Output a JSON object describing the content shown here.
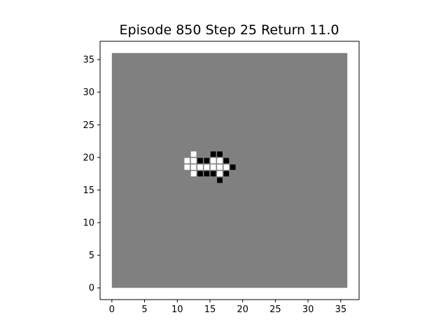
{
  "title": {
    "prefix_episode": "Episode",
    "episode": "850",
    "prefix_step": "Step",
    "step": "25",
    "prefix_return": "Return",
    "return_value": "11.0"
  },
  "board": {
    "grid_size": 36,
    "background_color": "#808080",
    "cells": [
      {
        "x": 12,
        "y": 20,
        "color": "white"
      },
      {
        "x": 15,
        "y": 20,
        "color": "black"
      },
      {
        "x": 16,
        "y": 20,
        "color": "black"
      },
      {
        "x": 11,
        "y": 19,
        "color": "white"
      },
      {
        "x": 12,
        "y": 19,
        "color": "white"
      },
      {
        "x": 13,
        "y": 19,
        "color": "black"
      },
      {
        "x": 14,
        "y": 19,
        "color": "black"
      },
      {
        "x": 15,
        "y": 19,
        "color": "white"
      },
      {
        "x": 16,
        "y": 19,
        "color": "white"
      },
      {
        "x": 17,
        "y": 19,
        "color": "black"
      },
      {
        "x": 11,
        "y": 18,
        "color": "white"
      },
      {
        "x": 12,
        "y": 18,
        "color": "white"
      },
      {
        "x": 13,
        "y": 18,
        "color": "white"
      },
      {
        "x": 14,
        "y": 18,
        "color": "white"
      },
      {
        "x": 15,
        "y": 18,
        "color": "white"
      },
      {
        "x": 16,
        "y": 18,
        "color": "white"
      },
      {
        "x": 17,
        "y": 18,
        "color": "white"
      },
      {
        "x": 18,
        "y": 18,
        "color": "black"
      },
      {
        "x": 12,
        "y": 17,
        "color": "white"
      },
      {
        "x": 13,
        "y": 17,
        "color": "black"
      },
      {
        "x": 14,
        "y": 17,
        "color": "black"
      },
      {
        "x": 15,
        "y": 17,
        "color": "black"
      },
      {
        "x": 16,
        "y": 17,
        "color": "white"
      },
      {
        "x": 17,
        "y": 17,
        "color": "black"
      },
      {
        "x": 16,
        "y": 16,
        "color": "black"
      }
    ]
  },
  "axes": {
    "xlim": [
      -1.8,
      37.8
    ],
    "ylim": [
      -1.8,
      37.8
    ],
    "xticks": [
      0,
      5,
      10,
      15,
      20,
      25,
      30,
      35
    ],
    "yticks": [
      0,
      5,
      10,
      15,
      20,
      25,
      30,
      35
    ],
    "xtick_labels": [
      "0",
      "5",
      "10",
      "15",
      "20",
      "25",
      "30",
      "35"
    ],
    "ytick_labels": [
      "0",
      "5",
      "10",
      "15",
      "20",
      "25",
      "30",
      "35"
    ]
  }
}
